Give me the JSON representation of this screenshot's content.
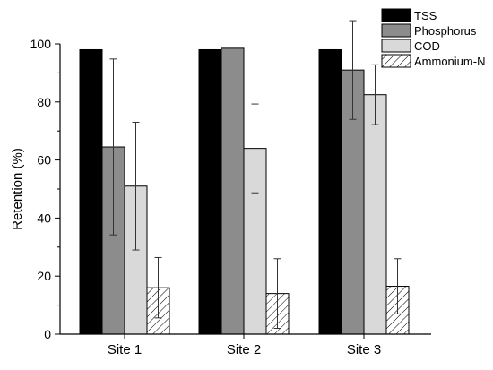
{
  "chart_data": {
    "type": "bar",
    "title": "",
    "xlabel": "",
    "ylabel": "Retention (%)",
    "ylim": [
      0,
      100
    ],
    "yticks": [
      0,
      20,
      40,
      60,
      80,
      100
    ],
    "categories": [
      "Site 1",
      "Site 2",
      "Site 3"
    ],
    "series": [
      {
        "name": "TSS",
        "values": [
          98,
          98,
          98
        ],
        "errors": [
          null,
          null,
          null
        ],
        "fill": "#000000",
        "pattern": "solid"
      },
      {
        "name": "Phosphorus",
        "values": [
          64.5,
          98.5,
          91
        ],
        "errors": [
          30.3,
          null,
          17
        ],
        "fill": "#8c8c8c",
        "pattern": "solid"
      },
      {
        "name": "COD",
        "values": [
          51,
          64,
          82.5
        ],
        "errors": [
          22,
          15.3,
          10.3
        ],
        "fill": "#d9d9d9",
        "pattern": "solid"
      },
      {
        "name": "Ammonium-N",
        "values": [
          16,
          14,
          16.5
        ],
        "errors": [
          10.4,
          12,
          9.5
        ],
        "fill": "#ffffff",
        "pattern": "hatch"
      }
    ],
    "legend_position": "top-right",
    "grid": false
  }
}
